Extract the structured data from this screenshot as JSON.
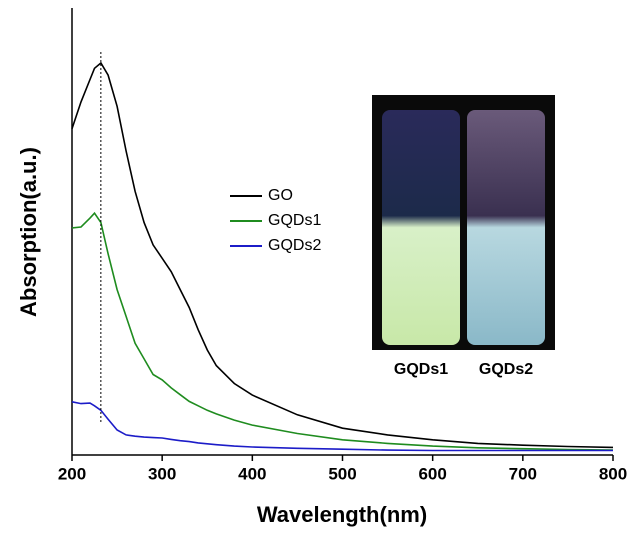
{
  "chart_data": {
    "type": "line",
    "xlabel": "Wavelength(nm)",
    "ylabel": "Absorption(a.u.)",
    "x": [
      200,
      210,
      220,
      225,
      232,
      240,
      250,
      260,
      270,
      280,
      290,
      300,
      310,
      320,
      330,
      340,
      350,
      360,
      380,
      400,
      450,
      500,
      550,
      600,
      650,
      700,
      750,
      800
    ],
    "series": [
      {
        "name": "GO",
        "color": "#000000",
        "values": [
          0.73,
          0.79,
          0.84,
          0.865,
          0.877,
          0.85,
          0.78,
          0.68,
          0.59,
          0.52,
          0.47,
          0.44,
          0.41,
          0.37,
          0.33,
          0.28,
          0.235,
          0.2,
          0.16,
          0.134,
          0.09,
          0.06,
          0.045,
          0.034,
          0.026,
          0.022,
          0.019,
          0.017
        ]
      },
      {
        "name": "GQDs1",
        "color": "#1f8c1f",
        "values": [
          0.508,
          0.51,
          0.53,
          0.541,
          0.52,
          0.45,
          0.37,
          0.31,
          0.25,
          0.215,
          0.18,
          0.168,
          0.15,
          0.135,
          0.12,
          0.11,
          0.1,
          0.092,
          0.078,
          0.067,
          0.048,
          0.034,
          0.026,
          0.02,
          0.016,
          0.014,
          0.012,
          0.011
        ]
      },
      {
        "name": "GQDs2",
        "color": "#1c1cc8",
        "values": [
          0.119,
          0.115,
          0.116,
          0.11,
          0.1,
          0.08,
          0.056,
          0.045,
          0.042,
          0.04,
          0.039,
          0.038,
          0.035,
          0.032,
          0.03,
          0.027,
          0.025,
          0.023,
          0.02,
          0.018,
          0.015,
          0.013,
          0.011,
          0.01,
          0.01,
          0.01,
          0.01,
          0.01
        ]
      }
    ],
    "peak_marker": 232,
    "inset_labels": [
      "GQDs1",
      "GQDs2"
    ],
    "xlim": [
      200,
      800
    ],
    "xticks": [
      200,
      300,
      400,
      500,
      600,
      700,
      800
    ],
    "ylim": [
      0,
      1
    ]
  }
}
